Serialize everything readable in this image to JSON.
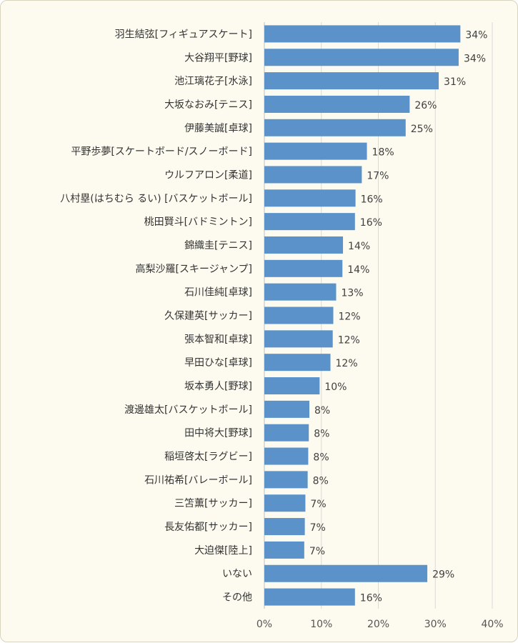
{
  "chart_data": {
    "type": "bar",
    "orientation": "horizontal",
    "categories": [
      "羽生結弦[フィギュアスケート]",
      "大谷翔平[野球]",
      "池江璃花子[水泳]",
      "大坂なおみ[テニス]",
      "伊藤美誠[卓球]",
      "平野歩夢[スケートボード/スノーボード]",
      "ウルフアロン[柔道]",
      "八村塁(はちむら るい) [バスケットボール]",
      "桃田賢斗[バドミントン]",
      "錦織圭[テニス]",
      "高梨沙羅[スキージャンプ]",
      "石川佳純[卓球]",
      "久保建英[サッカー]",
      "張本智和[卓球]",
      "早田ひな[卓球]",
      "坂本勇人[野球]",
      "渡邊雄太[バスケットボール]",
      "田中将大[野球]",
      "稲垣啓太[ラグビー]",
      "石川祐希[バレーボール]",
      "三笘薫[サッカー]",
      "長友佑都[サッカー]",
      "大迫傑[陸上]",
      "いない",
      "その他"
    ],
    "values": [
      34.4,
      34.1,
      30.6,
      25.5,
      24.8,
      18.0,
      17.1,
      16.0,
      15.9,
      13.8,
      13.7,
      12.6,
      12.1,
      12.0,
      11.6,
      9.7,
      7.9,
      7.8,
      7.7,
      7.6,
      7.2,
      7.1,
      7.0,
      28.6,
      15.9
    ],
    "data_labels": [
      "34%",
      "34%",
      "31%",
      "26%",
      "25%",
      "18%",
      "17%",
      "16%",
      "16%",
      "14%",
      "14%",
      "13%",
      "12%",
      "12%",
      "12%",
      "10%",
      "8%",
      "8%",
      "8%",
      "8%",
      "7%",
      "7%",
      "7%",
      "29%",
      "16%"
    ],
    "xlim": [
      0,
      40
    ],
    "x_ticks": [
      "0%",
      "10%",
      "20%",
      "30%",
      "40%"
    ],
    "grid": true,
    "bar_color": "#5b92c9",
    "title": "",
    "xlabel": "",
    "ylabel": ""
  }
}
